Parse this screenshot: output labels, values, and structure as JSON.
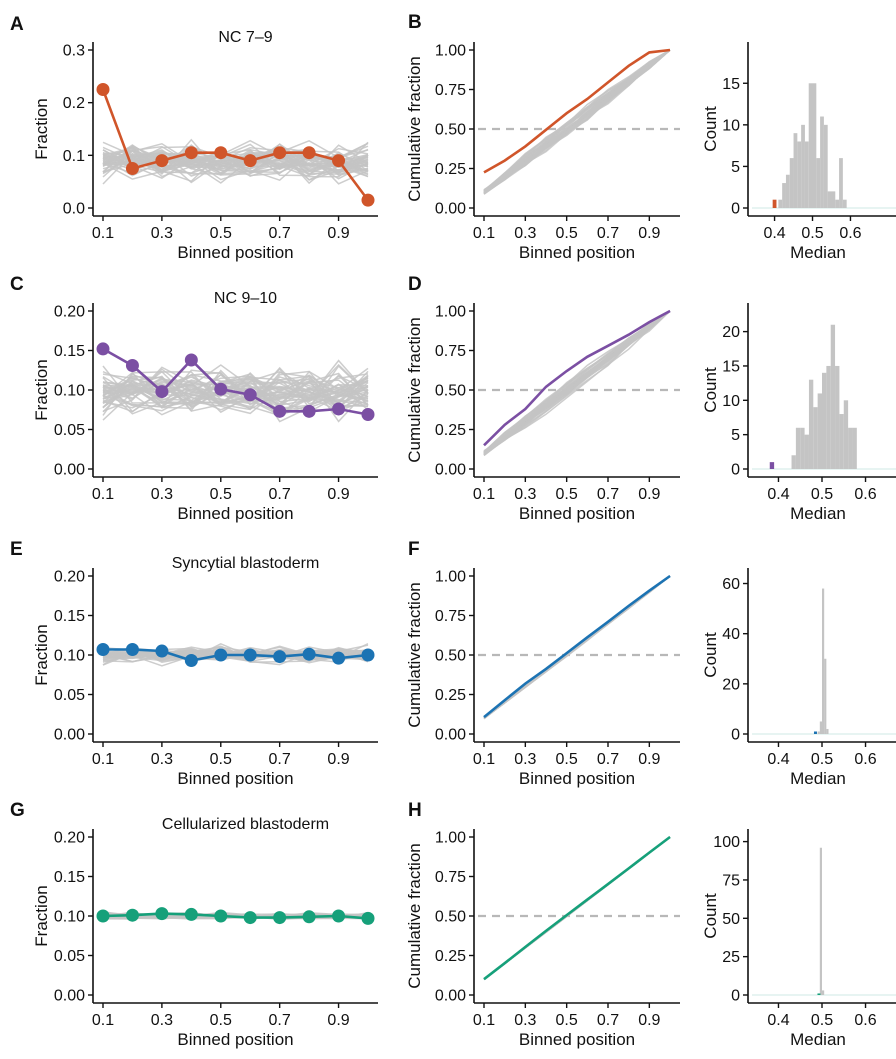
{
  "figure": {
    "colors": {
      "nc79": "#D0552A",
      "nc910": "#7B4FA3",
      "syncytial": "#1C73B3",
      "cellularized": "#16A07A",
      "null": "#C4C4C4",
      "dashed": "#B8B8B8"
    }
  },
  "chart_data": [
    {
      "panel": "A",
      "type": "line",
      "title": "NC 7–9",
      "color_key": "nc79",
      "xlabel": "Binned position",
      "ylabel": "Fraction",
      "xlim": [
        0.1,
        1.0
      ],
      "ylim": [
        0,
        0.3
      ],
      "xticks": [
        0.1,
        0.3,
        0.5,
        0.7,
        0.9
      ],
      "yticks": [
        0,
        0.1,
        0.2,
        0.3
      ],
      "ytick_labels": [
        "0.0",
        "0.1",
        "0.2",
        "0.3"
      ],
      "x": [
        0.1,
        0.2,
        0.3,
        0.4,
        0.5,
        0.6,
        0.7,
        0.8,
        0.9,
        1.0
      ],
      "series": [
        {
          "name": "",
          "values": [
            0.225,
            0.075,
            0.09,
            0.105,
            0.105,
            0.09,
            0.105,
            0.105,
            0.09,
            0.015
          ]
        }
      ],
      "null_band": {
        "center": 0.088,
        "spread": 0.032,
        "count": 45
      },
      "markers": true
    },
    {
      "panel": "B",
      "type": "line",
      "title": "",
      "color_key": "nc79",
      "xlabel": "Binned position",
      "ylabel": "Cumulative fraction",
      "xlim": [
        0.1,
        1.0
      ],
      "ylim": [
        0,
        1.0
      ],
      "xticks": [
        0.1,
        0.3,
        0.5,
        0.7,
        0.9
      ],
      "yticks": [
        0,
        0.25,
        0.5,
        0.75,
        1.0
      ],
      "ytick_labels": [
        "0.00",
        "0.25",
        "0.50",
        "0.75",
        "1.00"
      ],
      "reference_line": 0.5,
      "x": [
        0.1,
        0.2,
        0.3,
        0.4,
        0.5,
        0.6,
        0.7,
        0.8,
        0.9,
        1.0
      ],
      "series": [
        {
          "name": "",
          "values": [
            0.225,
            0.3,
            0.39,
            0.495,
            0.6,
            0.69,
            0.795,
            0.9,
            0.985,
            1.0
          ]
        }
      ],
      "null_band": {
        "spread": 0.05,
        "count": 40
      },
      "markers": false
    },
    {
      "panel": "B_hist",
      "type": "bar",
      "title": "",
      "color_key": "nc79",
      "xlabel": "Median",
      "ylabel": "Count",
      "xlim": [
        0.33,
        0.72
      ],
      "ylim": [
        0,
        19
      ],
      "xticks": [
        0.4,
        0.5,
        0.6
      ],
      "xtick_labels": [
        "0.4",
        "0.5",
        "0.6"
      ],
      "yticks": [
        0,
        5,
        10,
        15
      ],
      "ytick_labels": [
        "0",
        "5",
        "10",
        "15"
      ],
      "bin_width": 0.01,
      "bins": [
        [
          0.41,
          1
        ],
        [
          0.42,
          3
        ],
        [
          0.43,
          4
        ],
        [
          0.44,
          6
        ],
        [
          0.45,
          9
        ],
        [
          0.46,
          8
        ],
        [
          0.47,
          10
        ],
        [
          0.48,
          8
        ],
        [
          0.49,
          15
        ],
        [
          0.5,
          15
        ],
        [
          0.51,
          6
        ],
        [
          0.52,
          11
        ],
        [
          0.53,
          10
        ],
        [
          0.54,
          2
        ],
        [
          0.55,
          2
        ],
        [
          0.56,
          1
        ],
        [
          0.57,
          6
        ],
        [
          0.58,
          1
        ]
      ],
      "observed": {
        "x": 0.4,
        "height": 1
      }
    },
    {
      "panel": "C",
      "type": "line",
      "title": "NC 9–10",
      "color_key": "nc910",
      "xlabel": "Binned position",
      "ylabel": "Fraction",
      "xlim": [
        0.1,
        1.0
      ],
      "ylim": [
        0,
        0.2
      ],
      "xticks": [
        0.1,
        0.3,
        0.5,
        0.7,
        0.9
      ],
      "yticks": [
        0,
        0.05,
        0.1,
        0.15,
        0.2
      ],
      "ytick_labels": [
        "0.00",
        "0.05",
        "0.10",
        "0.15",
        "0.20"
      ],
      "x": [
        0.1,
        0.2,
        0.3,
        0.4,
        0.5,
        0.6,
        0.7,
        0.8,
        0.9,
        1.0
      ],
      "series": [
        {
          "name": "",
          "values": [
            0.152,
            0.131,
            0.098,
            0.138,
            0.101,
            0.094,
            0.073,
            0.073,
            0.076,
            0.069
          ]
        }
      ],
      "null_band": {
        "center": 0.098,
        "spread": 0.03,
        "count": 45
      },
      "markers": true
    },
    {
      "panel": "D",
      "type": "line",
      "title": "",
      "color_key": "nc910",
      "xlabel": "Binned position",
      "ylabel": "Cumulative fraction",
      "xlim": [
        0.1,
        1.0
      ],
      "ylim": [
        0,
        1.0
      ],
      "xticks": [
        0.1,
        0.3,
        0.5,
        0.7,
        0.9
      ],
      "yticks": [
        0,
        0.25,
        0.5,
        0.75,
        1.0
      ],
      "ytick_labels": [
        "0.00",
        "0.25",
        "0.50",
        "0.75",
        "1.00"
      ],
      "reference_line": 0.5,
      "x": [
        0.1,
        0.2,
        0.3,
        0.4,
        0.5,
        0.6,
        0.7,
        0.8,
        0.9,
        1.0
      ],
      "series": [
        {
          "name": "",
          "values": [
            0.15,
            0.28,
            0.38,
            0.52,
            0.62,
            0.71,
            0.78,
            0.85,
            0.93,
            1.0
          ]
        }
      ],
      "null_band": {
        "spread": 0.04,
        "count": 40
      },
      "markers": false
    },
    {
      "panel": "D_hist",
      "type": "bar",
      "title": "",
      "color_key": "nc910",
      "xlabel": "Median",
      "ylabel": "Count",
      "xlim": [
        0.33,
        0.67
      ],
      "ylim": [
        0,
        23
      ],
      "xticks": [
        0.4,
        0.5,
        0.6
      ],
      "xtick_labels": [
        "0.4",
        "0.5",
        "0.6"
      ],
      "yticks": [
        0,
        5,
        10,
        15,
        20
      ],
      "ytick_labels": [
        "0",
        "5",
        "10",
        "15",
        "20"
      ],
      "bin_width": 0.01,
      "bins": [
        [
          0.43,
          2
        ],
        [
          0.44,
          6
        ],
        [
          0.45,
          6
        ],
        [
          0.46,
          5
        ],
        [
          0.47,
          13
        ],
        [
          0.48,
          9
        ],
        [
          0.49,
          11
        ],
        [
          0.5,
          14
        ],
        [
          0.51,
          15
        ],
        [
          0.52,
          21
        ],
        [
          0.53,
          15
        ],
        [
          0.54,
          8
        ],
        [
          0.55,
          10
        ],
        [
          0.56,
          6
        ],
        [
          0.57,
          6
        ]
      ],
      "observed": {
        "x": 0.385,
        "height": 1
      }
    },
    {
      "panel": "E",
      "type": "line",
      "title": "Syncytial blastoderm",
      "color_key": "syncytial",
      "xlabel": "Binned position",
      "ylabel": "Fraction",
      "xlim": [
        0.1,
        1.0
      ],
      "ylim": [
        0,
        0.2
      ],
      "xticks": [
        0.1,
        0.3,
        0.5,
        0.7,
        0.9
      ],
      "yticks": [
        0,
        0.05,
        0.1,
        0.15,
        0.2
      ],
      "ytick_labels": [
        "0.00",
        "0.05",
        "0.10",
        "0.15",
        "0.20"
      ],
      "x": [
        0.1,
        0.2,
        0.3,
        0.4,
        0.5,
        0.6,
        0.7,
        0.8,
        0.9,
        1.0
      ],
      "series": [
        {
          "name": "",
          "values": [
            0.107,
            0.107,
            0.105,
            0.093,
            0.1,
            0.1,
            0.098,
            0.101,
            0.096,
            0.1
          ]
        }
      ],
      "null_band": {
        "center": 0.1,
        "spread": 0.01,
        "count": 35
      },
      "markers": true
    },
    {
      "panel": "F",
      "type": "line",
      "title": "",
      "color_key": "syncytial",
      "xlabel": "Binned position",
      "ylabel": "Cumulative fraction",
      "xlim": [
        0.1,
        1.0
      ],
      "ylim": [
        0,
        1.0
      ],
      "xticks": [
        0.1,
        0.3,
        0.5,
        0.7,
        0.9
      ],
      "yticks": [
        0,
        0.25,
        0.5,
        0.75,
        1.0
      ],
      "ytick_labels": [
        "0.00",
        "0.25",
        "0.50",
        "0.75",
        "1.00"
      ],
      "reference_line": 0.5,
      "x": [
        0.1,
        0.2,
        0.3,
        0.4,
        0.5,
        0.6,
        0.7,
        0.8,
        0.9,
        1.0
      ],
      "series": [
        {
          "name": "",
          "values": [
            0.107,
            0.214,
            0.319,
            0.412,
            0.512,
            0.612,
            0.71,
            0.811,
            0.907,
            1.0
          ]
        }
      ],
      "null_band": {
        "spread": 0.008,
        "count": 30
      },
      "markers": false
    },
    {
      "panel": "F_hist",
      "type": "bar",
      "title": "",
      "color_key": "syncytial",
      "xlabel": "Median",
      "ylabel": "Count",
      "xlim": [
        0.33,
        0.67
      ],
      "ylim": [
        0,
        63
      ],
      "xticks": [
        0.4,
        0.5,
        0.6
      ],
      "xtick_labels": [
        "0.4",
        "0.5",
        "0.6"
      ],
      "yticks": [
        0,
        20,
        40,
        60
      ],
      "ytick_labels": [
        "0",
        "20",
        "40",
        "60"
      ],
      "bin_width": 0.005,
      "bins": [
        [
          0.49,
          1
        ],
        [
          0.495,
          5
        ],
        [
          0.5,
          58
        ],
        [
          0.505,
          30
        ],
        [
          0.51,
          2
        ]
      ],
      "observed": {
        "x": 0.485,
        "height": 1
      }
    },
    {
      "panel": "G",
      "type": "line",
      "title": "Cellularized blastoderm",
      "color_key": "cellularized",
      "xlabel": "Binned position",
      "ylabel": "Fraction",
      "xlim": [
        0.1,
        1.0
      ],
      "ylim": [
        0,
        0.2
      ],
      "xticks": [
        0.1,
        0.3,
        0.5,
        0.7,
        0.9
      ],
      "yticks": [
        0,
        0.05,
        0.1,
        0.15,
        0.2
      ],
      "ytick_labels": [
        "0.00",
        "0.05",
        "0.10",
        "0.15",
        "0.20"
      ],
      "x": [
        0.1,
        0.2,
        0.3,
        0.4,
        0.5,
        0.6,
        0.7,
        0.8,
        0.9,
        1.0
      ],
      "series": [
        {
          "name": "",
          "values": [
            0.1,
            0.101,
            0.103,
            0.102,
            0.1,
            0.098,
            0.098,
            0.099,
            0.1,
            0.097
          ]
        }
      ],
      "null_band": {
        "center": 0.1,
        "spread": 0.004,
        "count": 30
      },
      "markers": true
    },
    {
      "panel": "H",
      "type": "line",
      "title": "",
      "color_key": "cellularized",
      "xlabel": "Binned position",
      "ylabel": "Cumulative fraction",
      "xlim": [
        0.1,
        1.0
      ],
      "ylim": [
        0,
        1.0
      ],
      "xticks": [
        0.1,
        0.3,
        0.5,
        0.7,
        0.9
      ],
      "yticks": [
        0,
        0.25,
        0.5,
        0.75,
        1.0
      ],
      "ytick_labels": [
        "0.00",
        "0.25",
        "0.50",
        "0.75",
        "1.00"
      ],
      "reference_line": 0.5,
      "x": [
        0.1,
        0.2,
        0.3,
        0.4,
        0.5,
        0.6,
        0.7,
        0.8,
        0.9,
        1.0
      ],
      "series": [
        {
          "name": "",
          "values": [
            0.1,
            0.201,
            0.304,
            0.406,
            0.506,
            0.604,
            0.702,
            0.801,
            0.901,
            1.0
          ]
        }
      ],
      "null_band": {
        "spread": 0.003,
        "count": 25
      },
      "markers": false
    },
    {
      "panel": "H_hist",
      "type": "bar",
      "title": "",
      "color_key": "cellularized",
      "xlabel": "Median",
      "ylabel": "Count",
      "xlim": [
        0.33,
        0.67
      ],
      "ylim": [
        0,
        103
      ],
      "xticks": [
        0.4,
        0.5,
        0.6
      ],
      "xtick_labels": [
        "0.4",
        "0.5",
        "0.6"
      ],
      "yticks": [
        0,
        25,
        50,
        75,
        100
      ],
      "ytick_labels": [
        "0",
        "25",
        "50",
        "75",
        "100"
      ],
      "bin_width": 0.005,
      "bins": [
        [
          0.495,
          96
        ],
        [
          0.5,
          3
        ]
      ],
      "observed": {
        "x": 0.493,
        "height": 1
      }
    }
  ]
}
